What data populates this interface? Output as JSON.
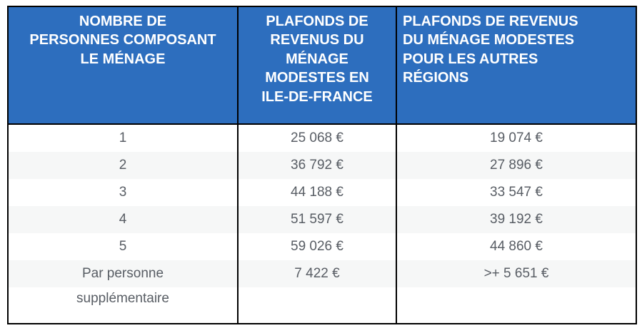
{
  "colors": {
    "header_bg": "#2d6ebe",
    "header_text": "#ffffff",
    "row_bg": "#ffffff",
    "row_alt_bg": "#f6f7f7",
    "body_text": "#585d64",
    "border": "#000000"
  },
  "chart_data": {
    "type": "table",
    "title": "",
    "columns": [
      "NOMBRE DE\nPERSONNES COMPOSANT\nLE MÉNAGE",
      "PLAFONDS DE\nREVENUS DU\nMÉNAGE\nMODESTES EN\nILE-DE-FRANCE",
      "PLAFONDS DE REVENUS\nDU MÉNAGE MODESTES\nPOUR LES AUTRES\nRÉGIONS"
    ],
    "columns_plain": [
      "NOMBRE DE PERSONNES COMPOSANT LE MÉNAGE",
      "PLAFONDS DE REVENUS DU MÉNAGE MODESTES EN ILE-DE-FRANCE",
      "PLAFONDS DE REVENUS DU MÉNAGE MODESTES POUR LES AUTRES RÉGIONS"
    ],
    "rows": [
      [
        "1",
        "25 068 €",
        "19 074 €"
      ],
      [
        "2",
        "36 792 €",
        "27 896 €"
      ],
      [
        "3",
        "44 188 €",
        "33 547 €"
      ],
      [
        "4",
        "51 597 €",
        "39 192 €"
      ],
      [
        "5",
        "59 026 €",
        "44 860 €"
      ],
      [
        "Par personne",
        "7 422 €",
        ">+ 5 651 €"
      ],
      [
        "supplémentaire",
        "",
        ""
      ]
    ]
  }
}
